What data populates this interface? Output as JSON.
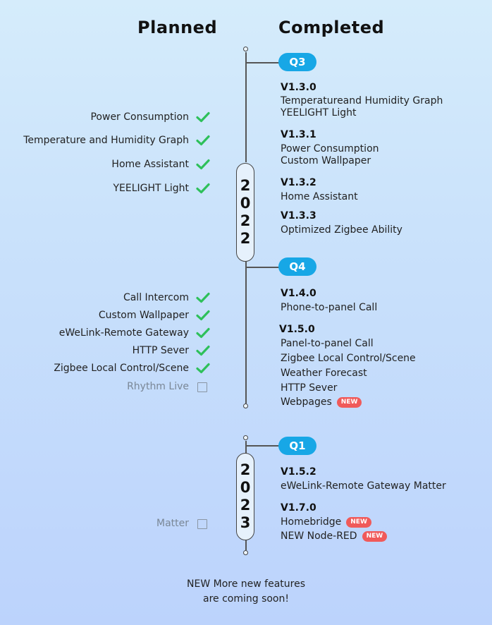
{
  "headers": {
    "planned": "Planned",
    "completed": "Completed"
  },
  "year_2022": {
    "digits": [
      "2",
      "0",
      "2",
      "2"
    ]
  },
  "year_2023": {
    "digits": [
      "2",
      "0",
      "2",
      "3"
    ]
  },
  "quarters": {
    "q3": "Q3",
    "q4": "Q4",
    "q1": "Q1"
  },
  "planned": {
    "q3": [
      {
        "label": "Power Consumption",
        "status": "done"
      },
      {
        "label": "Temperature and Humidity Graph",
        "status": "done"
      },
      {
        "label": "Home Assistant",
        "status": "done"
      },
      {
        "label": "YEELIGHT Light",
        "status": "done"
      }
    ],
    "q4": [
      {
        "label": "Call Intercom",
        "status": "done"
      },
      {
        "label": "Custom Wallpaper",
        "status": "done"
      },
      {
        "label": "eWeLink-Remote Gateway",
        "status": "done"
      },
      {
        "label": "HTTP Sever",
        "status": "done"
      },
      {
        "label": "Zigbee Local Control/Scene",
        "status": "done"
      },
      {
        "label": "Rhythm Live",
        "status": "pending"
      }
    ],
    "q1": [
      {
        "label": "Matter",
        "status": "pending"
      }
    ]
  },
  "completed": {
    "v130": {
      "version": "V1.3.0",
      "features": [
        "Temperatureand Humidity Graph",
        "YEELIGHT Light"
      ]
    },
    "v131": {
      "version": "V1.3.1",
      "features": [
        "Power Consumption",
        "Custom Wallpaper"
      ]
    },
    "v132": {
      "version": "V1.3.2",
      "features": [
        "Home Assistant"
      ]
    },
    "v133": {
      "version": "V1.3.3",
      "features": [
        "Optimized Zigbee Ability"
      ]
    },
    "v140": {
      "version": "V1.4.0",
      "features": [
        "Phone-to-panel Call"
      ]
    },
    "v150": {
      "version": "V1.5.0",
      "features": [
        "Panel-to-panel Call",
        "Zigbee Local Control/Scene",
        "Weather Forecast",
        "HTTP Sever",
        "Webpages"
      ]
    },
    "v152": {
      "version": "V1.5.2",
      "features": [
        "eWeLink-Remote Gateway Matter"
      ]
    },
    "v170": {
      "version": "V1.7.0",
      "features": [
        "Homebridge",
        "NEW Node-RED"
      ]
    }
  },
  "new_tag": "NEW",
  "footer": {
    "line1": "NEW More new features",
    "line2": "are coming soon!"
  },
  "colors": {
    "pill": "#17a7e6",
    "check": "#2ec05a",
    "new_tag": "#f05a5a"
  }
}
